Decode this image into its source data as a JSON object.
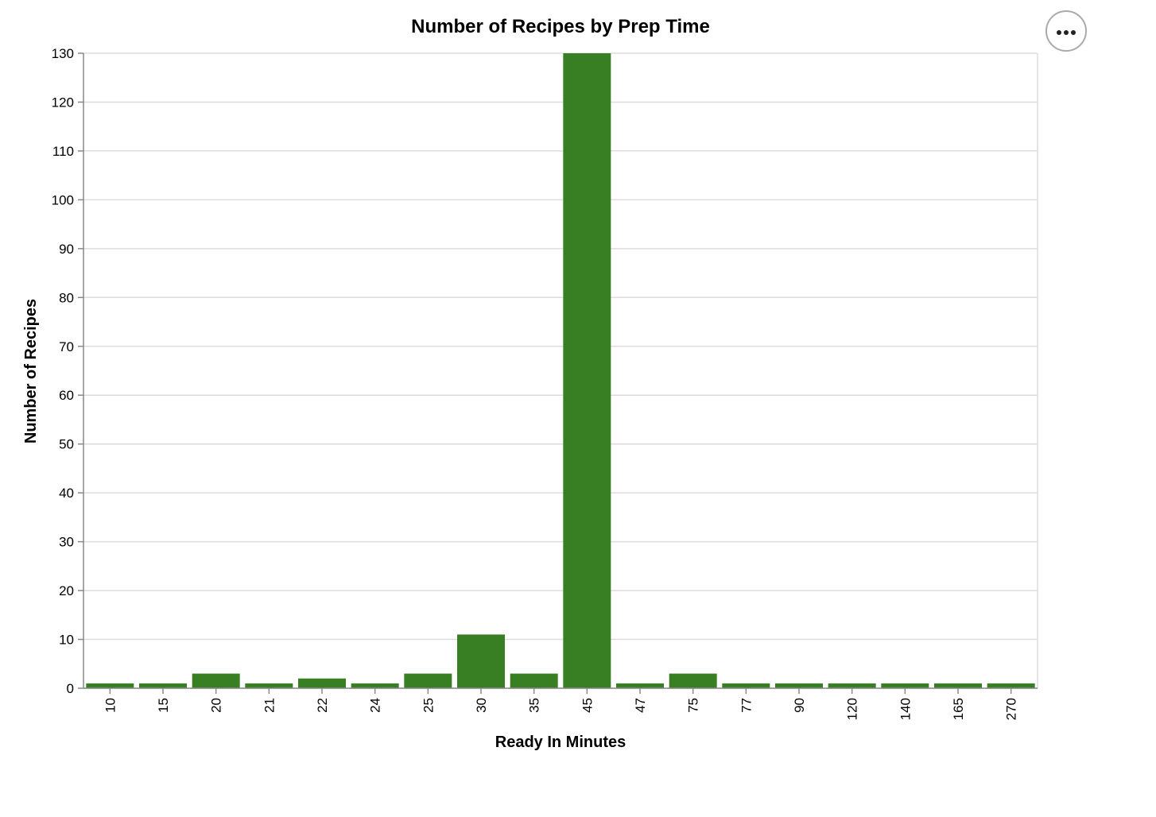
{
  "menu": {
    "icon": "more-horizontal-icon"
  },
  "colors": {
    "bar": "#377f22",
    "grid": "#dddddd",
    "axis": "#888888"
  },
  "chart_data": {
    "type": "bar",
    "title": "Number of Recipes by Prep Time",
    "xlabel": "Ready In Minutes",
    "ylabel": "Number of Recipes",
    "categories": [
      "10",
      "15",
      "20",
      "21",
      "22",
      "24",
      "25",
      "30",
      "35",
      "45",
      "47",
      "75",
      "77",
      "90",
      "120",
      "140",
      "165",
      "270"
    ],
    "values": [
      1,
      1,
      3,
      1,
      2,
      1,
      3,
      11,
      3,
      130,
      1,
      3,
      1,
      1,
      1,
      1,
      1,
      1
    ],
    "ylim": [
      0,
      130
    ],
    "yticks": [
      0,
      10,
      20,
      30,
      40,
      50,
      60,
      70,
      80,
      90,
      100,
      110,
      120,
      130
    ],
    "grid": true,
    "legend": "none"
  }
}
